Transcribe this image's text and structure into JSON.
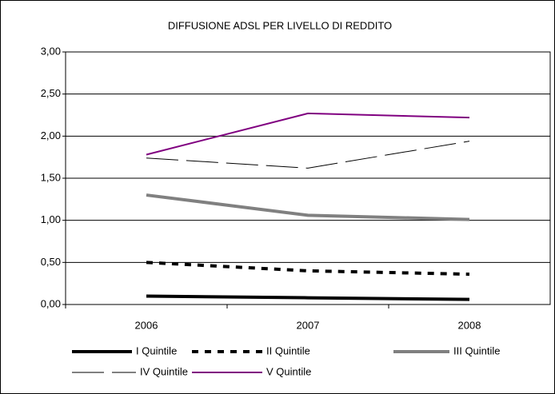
{
  "chart_data": {
    "type": "line",
    "title": "DIFFUSIONE ADSL PER LIVELLO DI REDDITO",
    "categories": [
      "2006",
      "2007",
      "2008"
    ],
    "series": [
      {
        "name": "I Quintile",
        "color": "#000000",
        "width": 4,
        "style": "solid",
        "values": [
          0.1,
          0.08,
          0.06
        ]
      },
      {
        "name": "II Quintile",
        "color": "#000000",
        "width": 4,
        "style": "dotted",
        "values": [
          0.5,
          0.4,
          0.36
        ]
      },
      {
        "name": "III Quintile",
        "color": "#808080",
        "width": 4,
        "style": "solid",
        "values": [
          1.3,
          1.06,
          1.01
        ]
      },
      {
        "name": "IV Quintile",
        "color": "#000000",
        "width": 1,
        "style": "dashed",
        "values": [
          1.74,
          1.62,
          1.94
        ]
      },
      {
        "name": "V Quintile",
        "color": "#800080",
        "width": 2,
        "style": "solid",
        "values": [
          1.78,
          2.27,
          2.22
        ]
      }
    ],
    "ylim": [
      0,
      3
    ],
    "yticks": [
      {
        "value": 0,
        "label": "0,00"
      },
      {
        "value": 0.5,
        "label": "0,50"
      },
      {
        "value": 1,
        "label": "1,00"
      },
      {
        "value": 1.5,
        "label": "1,50"
      },
      {
        "value": 2,
        "label": "2,00"
      },
      {
        "value": 2.5,
        "label": "2,50"
      },
      {
        "value": 3,
        "label": "3,00"
      }
    ],
    "grid": true,
    "legend": "bottom"
  }
}
